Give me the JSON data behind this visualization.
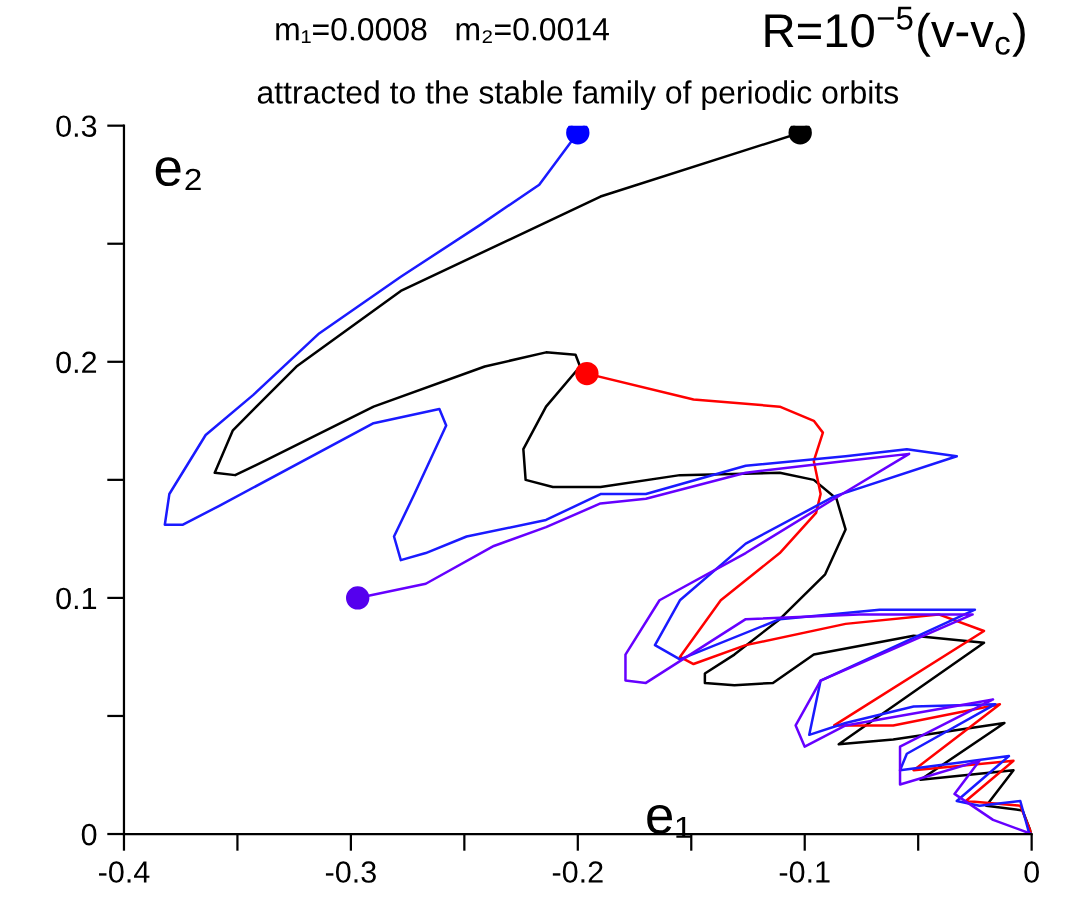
{
  "chart_data": {
    "type": "line",
    "title": "attracted to the stable family of periodic orbits",
    "xlabel": "e₁",
    "ylabel": "e₂",
    "annotations": [
      "m₁=0.0008   m₂=0.0014",
      "R=10$^{−5}$(v-v$_{c}$)"
    ],
    "xlim": [
      -0.4,
      0
    ],
    "ylim": [
      0,
      0.3
    ],
    "xticks": [
      -0.4,
      {
        "value": -0.35,
        "label": null
      },
      -0.3,
      {
        "value": -0.25,
        "label": null
      },
      -0.2,
      {
        "value": -0.15,
        "label": null
      },
      -0.1,
      {
        "value": -0.05,
        "label": null
      },
      0
    ],
    "yticks": [
      0,
      {
        "value": 0.05,
        "label": null
      },
      0.1,
      {
        "value": 0.15,
        "label": null
      },
      0.2,
      {
        "value": 0.25,
        "label": null
      },
      0.3
    ],
    "grid": false,
    "legend": false,
    "marker": "none",
    "line_style": "solid",
    "series": [
      {
        "color": "#000000",
        "x": [
          -0.102,
          -0.19,
          -0.278,
          -0.324,
          -0.352,
          -0.36,
          -0.351,
          -0.338,
          -0.29,
          -0.241,
          -0.214,
          -0.201,
          -0.199,
          -0.214,
          -0.224,
          -0.223,
          -0.211,
          -0.19,
          -0.155,
          -0.111,
          -0.096,
          -0.086,
          -0.082,
          -0.091,
          -0.111,
          -0.131,
          -0.144,
          -0.144,
          -0.131,
          -0.114,
          -0.096,
          -0.052,
          -0.021,
          -0.085,
          -0.061,
          -0.012,
          -0.049,
          -0.008,
          -0.02,
          -0.004,
          0
        ],
        "values": [
          0.297,
          0.27,
          0.23,
          0.198,
          0.171,
          0.153,
          0.152,
          0.158,
          0.181,
          0.198,
          0.204,
          0.203,
          0.198,
          0.181,
          0.163,
          0.15,
          0.147,
          0.147,
          0.152,
          0.153,
          0.15,
          0.142,
          0.129,
          0.11,
          0.091,
          0.076,
          0.068,
          0.064,
          0.063,
          0.064,
          0.076,
          0.084,
          0.081,
          0.038,
          0.04,
          0.047,
          0.023,
          0.027,
          0.012,
          0.01,
          0
        ]
      },
      {
        "color": "#ff0000",
        "x": [
          -0.196,
          -0.149,
          -0.111,
          -0.096,
          -0.092,
          -0.096,
          -0.093,
          -0.095,
          -0.111,
          -0.137,
          -0.155,
          -0.149,
          -0.126,
          -0.082,
          -0.041,
          -0.021,
          -0.087,
          -0.061,
          -0.014,
          -0.052,
          -0.008,
          -0.029,
          -0.005,
          0
        ],
        "values": [
          0.195,
          0.184,
          0.181,
          0.175,
          0.17,
          0.158,
          0.144,
          0.136,
          0.119,
          0.099,
          0.075,
          0.072,
          0.08,
          0.089,
          0.093,
          0.086,
          0.046,
          0.046,
          0.055,
          0.027,
          0.031,
          0.014,
          0.012,
          0
        ]
      },
      {
        "color": "#1a1aff",
        "x": [
          -0.2,
          -0.217,
          -0.243,
          -0.278,
          -0.314,
          -0.343,
          -0.364,
          -0.38,
          -0.382,
          -0.374,
          -0.358,
          -0.29,
          -0.261,
          -0.258,
          -0.272,
          -0.281,
          -0.278,
          -0.267,
          -0.249,
          -0.214,
          -0.19,
          -0.17,
          -0.126,
          -0.082,
          -0.055,
          -0.033,
          -0.087,
          -0.126,
          -0.155,
          -0.166,
          -0.155,
          -0.111,
          -0.067,
          -0.025,
          -0.093,
          -0.098,
          -0.082,
          -0.052,
          -0.016,
          -0.055,
          -0.058,
          -0.034,
          -0.01,
          -0.033,
          -0.023,
          -0.005,
          -0.001
        ],
        "values": [
          0.297,
          0.275,
          0.258,
          0.236,
          0.212,
          0.186,
          0.169,
          0.144,
          0.131,
          0.131,
          0.139,
          0.174,
          0.18,
          0.173,
          0.144,
          0.126,
          0.116,
          0.119,
          0.126,
          0.133,
          0.144,
          0.144,
          0.156,
          0.16,
          0.163,
          0.16,
          0.143,
          0.123,
          0.099,
          0.08,
          0.074,
          0.091,
          0.095,
          0.095,
          0.065,
          0.042,
          0.047,
          0.054,
          0.055,
          0.034,
          0.027,
          0.03,
          0.033,
          0.014,
          0.012,
          0.014,
          0
        ]
      },
      {
        "color": "#6600ff",
        "x": [
          -0.297,
          -0.267,
          -0.237,
          -0.214,
          -0.19,
          -0.17,
          -0.126,
          -0.082,
          -0.054,
          -0.087,
          -0.126,
          -0.164,
          -0.179,
          -0.179,
          -0.17,
          -0.126,
          -0.076,
          -0.026,
          -0.093,
          -0.104,
          -0.1,
          -0.082,
          -0.017,
          -0.058,
          -0.058,
          -0.023,
          -0.034,
          -0.017,
          0
        ],
        "values": [
          0.1,
          0.106,
          0.122,
          0.13,
          0.14,
          0.142,
          0.153,
          0.158,
          0.161,
          0.142,
          0.119,
          0.099,
          0.076,
          0.065,
          0.064,
          0.091,
          0.093,
          0.093,
          0.065,
          0.046,
          0.037,
          0.046,
          0.057,
          0.037,
          0.021,
          0.031,
          0.017,
          0.006,
          0
        ]
      },
      {
        "type": "scatter",
        "marker": "circle",
        "x": [
          -0.102,
          -0.2,
          -0.196,
          -0.297
        ],
        "values": [
          0.297,
          0.297,
          0.195,
          0.1
        ],
        "colors": [
          "#000000",
          "#0000ff",
          "#ff0000",
          "#5500ee"
        ]
      }
    ]
  }
}
